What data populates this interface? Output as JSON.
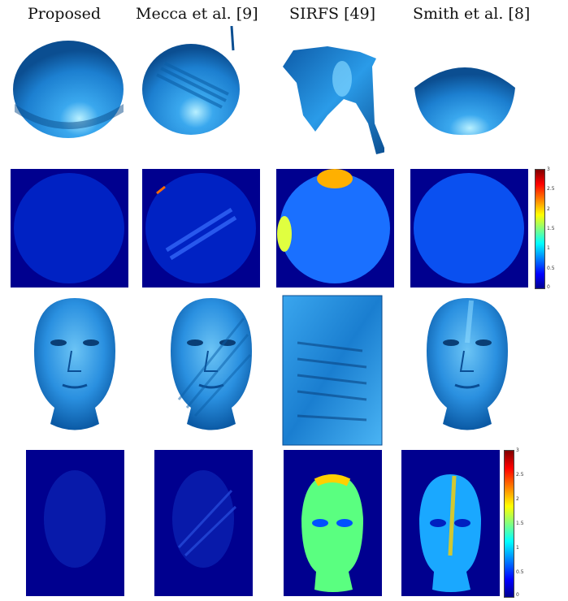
{
  "columns": [
    {
      "label": "Proposed"
    },
    {
      "label": "Mecca et al. [9]"
    },
    {
      "label": "SIRFS [49]"
    },
    {
      "label": "Smith et al. [8]"
    }
  ],
  "colorbar_top": {
    "ticks": [
      "3",
      "2.5",
      "2",
      "1.5",
      "1",
      "0.5",
      "0"
    ]
  },
  "colorbar_bottom": {
    "ticks": [
      "3",
      "2.5",
      "2",
      "1.5",
      "1",
      "0.5",
      "0"
    ]
  },
  "colors": {
    "shape_blue": "#1f8fe0",
    "error_bg": "#00008f"
  }
}
